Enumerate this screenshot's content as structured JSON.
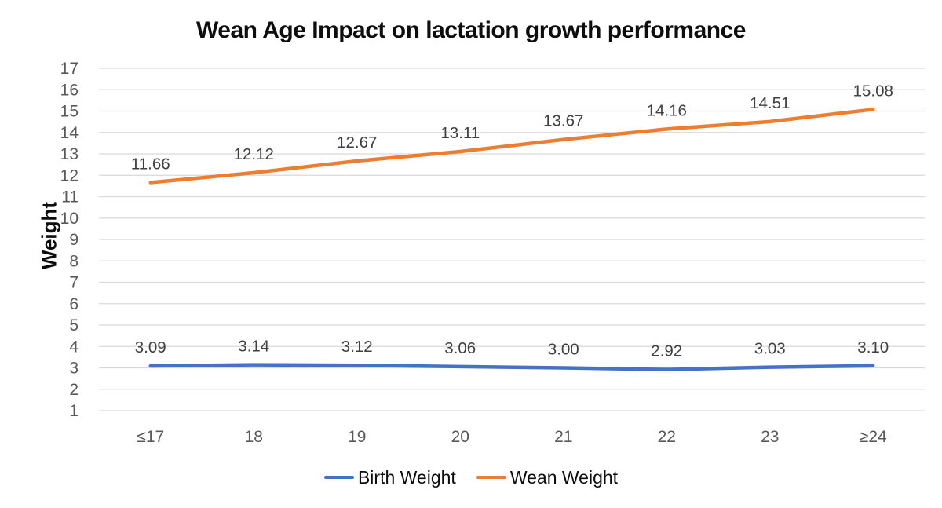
{
  "colors": {
    "birth_weight_line": "#4472C4",
    "wean_weight_line": "#ED7D31",
    "gridline": "#D9D9D9",
    "axis_text": "#595959",
    "data_label": "#404040",
    "title_text": "#0d0d0d",
    "background": "#ffffff"
  },
  "chart_data": {
    "type": "line",
    "title": "Wean Age Impact on lactation growth performance",
    "xlabel": "",
    "ylabel": "Weight",
    "categories": [
      "≤17",
      "18",
      "19",
      "20",
      "21",
      "22",
      "23",
      "≥24"
    ],
    "series": [
      {
        "name": "Birth Weight",
        "color": "#4472C4",
        "values": [
          3.09,
          3.14,
          3.12,
          3.06,
          3.0,
          2.92,
          3.03,
          3.1
        ],
        "labels": [
          "3.09",
          "3.14",
          "3.12",
          "3.06",
          "3.00",
          "2.92",
          "3.03",
          "3.10"
        ]
      },
      {
        "name": "Wean Weight",
        "color": "#ED7D31",
        "values": [
          11.66,
          12.12,
          12.67,
          13.11,
          13.67,
          14.16,
          14.51,
          15.08
        ],
        "labels": [
          "11.66",
          "12.12",
          "12.67",
          "13.11",
          "13.67",
          "14.16",
          "14.51",
          "15.08"
        ]
      }
    ],
    "y_axis": {
      "min": 1,
      "max": 17,
      "step": 1,
      "ticks": [
        17,
        16,
        15,
        14,
        13,
        12,
        11,
        10,
        9,
        8,
        7,
        6,
        5,
        4,
        3,
        2,
        1
      ]
    },
    "grid": true,
    "legend_position": "bottom",
    "data_labels": "above"
  }
}
